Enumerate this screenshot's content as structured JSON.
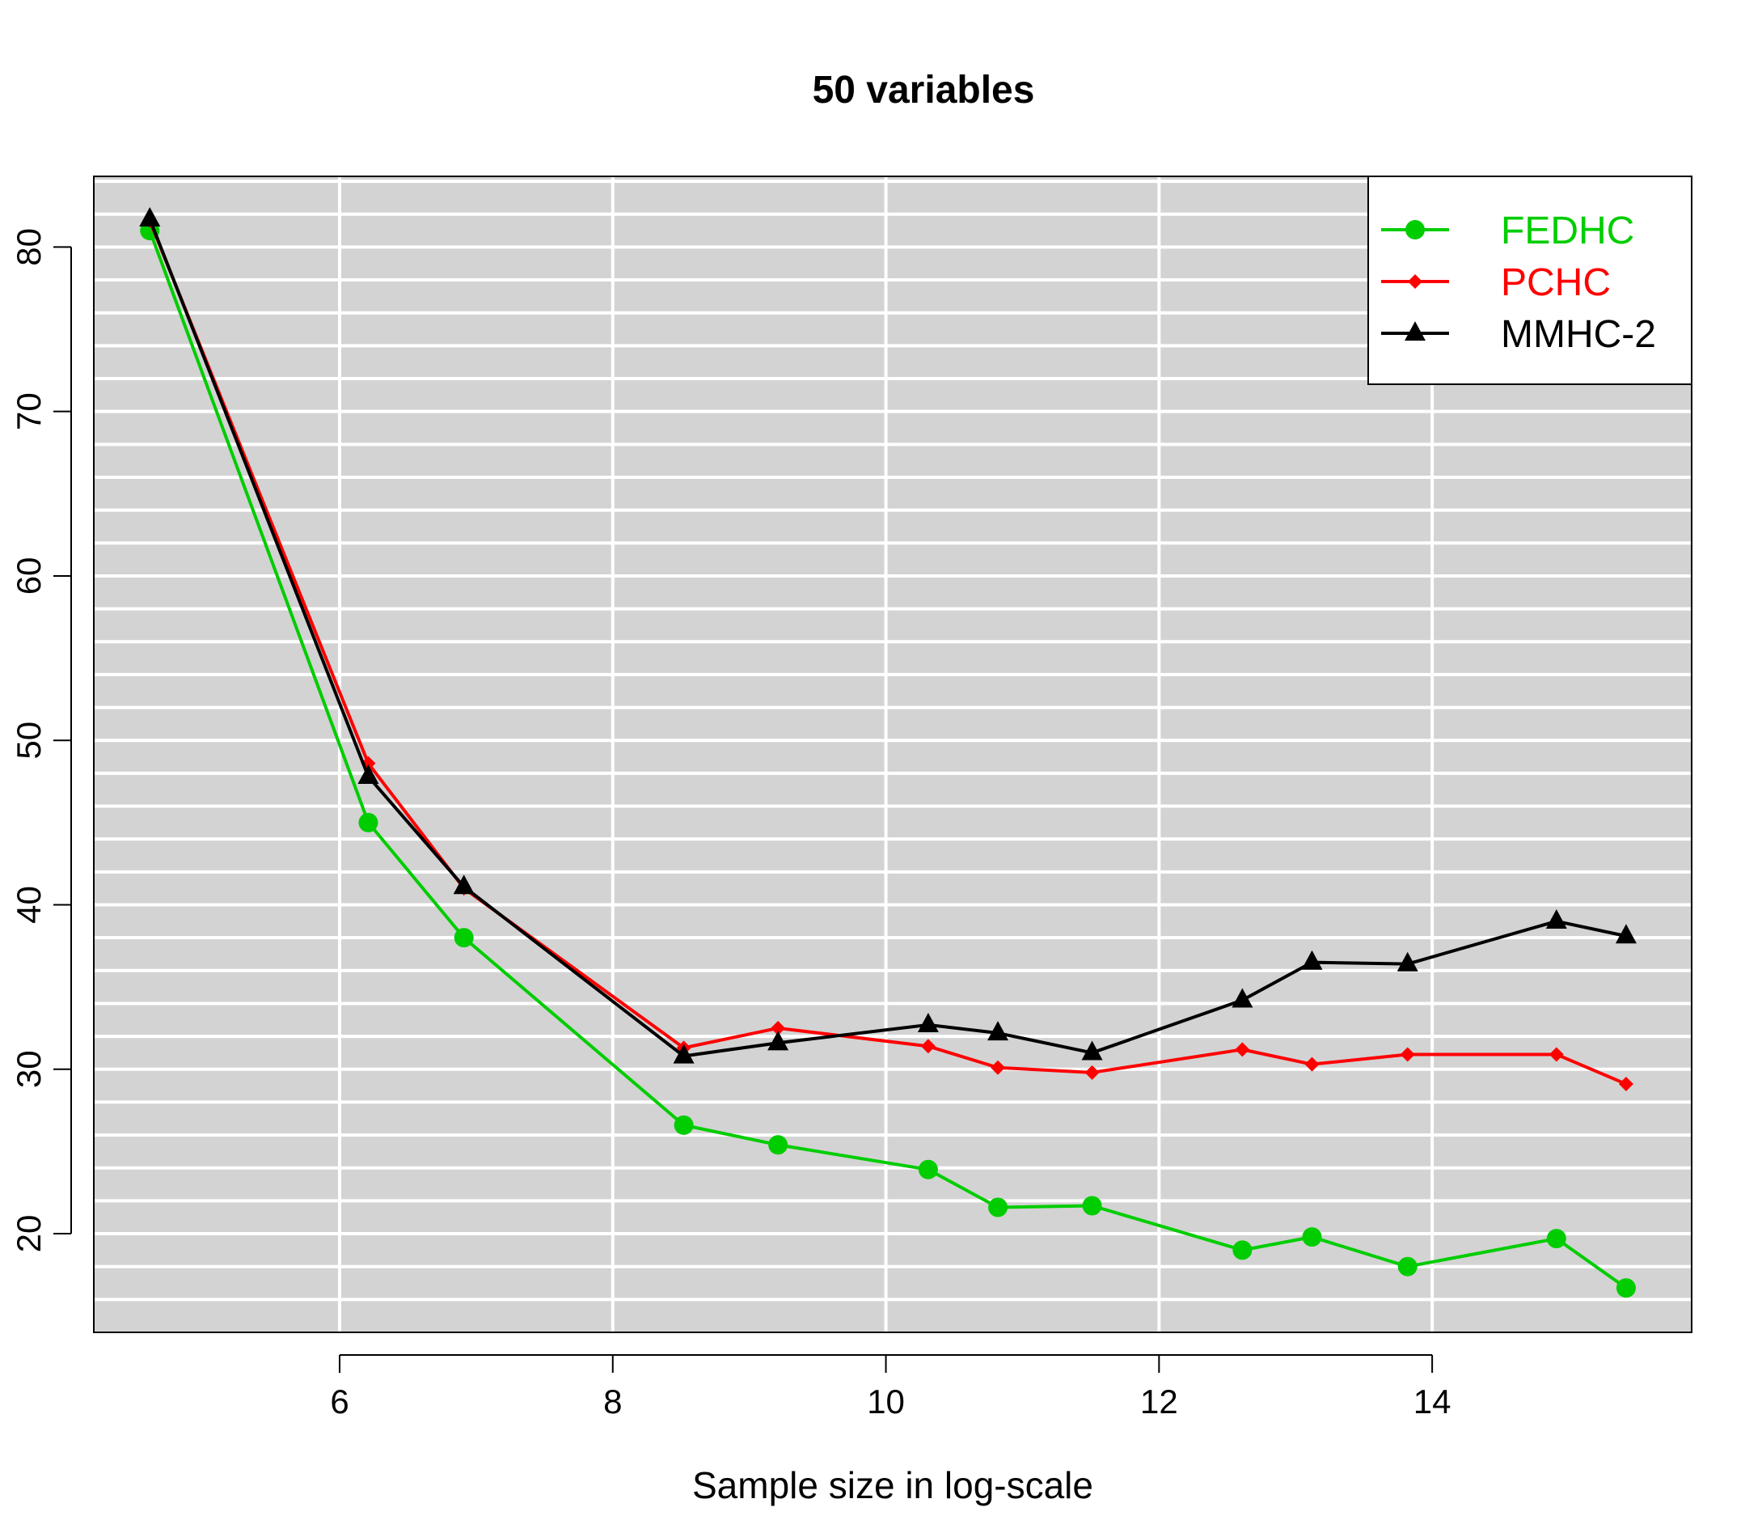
{
  "chart_data": {
    "type": "line",
    "title": "50 variables",
    "xlabel": "Sample size in log-scale",
    "ylabel": "",
    "xlim": [
      4.2,
      15.9
    ],
    "ylim": [
      14.0,
      84.3
    ],
    "x_ticks": [
      6,
      8,
      10,
      12,
      14
    ],
    "y_ticks": [
      20,
      30,
      40,
      50,
      60,
      70,
      80
    ],
    "grid": true,
    "background": "#d3d3d3",
    "grid_color": "#ffffff",
    "legend_position": "top-right",
    "x": [
      4.61,
      6.21,
      6.91,
      8.52,
      9.21,
      10.31,
      10.82,
      11.51,
      12.61,
      13.12,
      13.82,
      14.91,
      15.42
    ],
    "series": [
      {
        "name": "FEDHC",
        "color": "#00cd00",
        "marker": "circle",
        "values": [
          81.0,
          45.0,
          38.0,
          26.6,
          25.4,
          23.9,
          21.6,
          21.7,
          19.0,
          19.8,
          18.0,
          19.7,
          16.7
        ]
      },
      {
        "name": "PCHC",
        "color": "#ff0000",
        "marker": "diamond",
        "values": [
          81.6,
          48.6,
          41.0,
          31.3,
          32.5,
          31.4,
          30.1,
          29.8,
          31.2,
          30.3,
          30.9,
          30.9,
          29.1
        ]
      },
      {
        "name": "MMHC-2",
        "color": "#000000",
        "marker": "triangle",
        "values": [
          81.7,
          47.8,
          41.1,
          30.8,
          31.6,
          32.7,
          32.2,
          31.0,
          34.2,
          36.5,
          36.4,
          39.0,
          38.1
        ]
      }
    ]
  }
}
